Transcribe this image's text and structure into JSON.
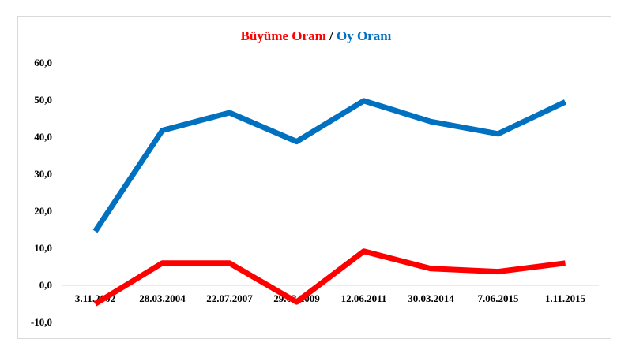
{
  "chart_data": {
    "type": "line",
    "title_part1": "Büyüme Oranı",
    "title_sep": " / ",
    "title_part2": "Oy Oranı",
    "categories": [
      "3.11.2002",
      "28.03.2004",
      "22.07.2007",
      "29.03.2009",
      "12.06.2011",
      "30.03.2014",
      "7.06.2015",
      "1.11.2015"
    ],
    "series": [
      {
        "name": "Büyüme Oranı",
        "color": "#ff0000",
        "values": [
          -5.0,
          6.0,
          6.0,
          -4.5,
          9.2,
          4.5,
          3.7,
          6.0
        ]
      },
      {
        "name": "Oy Oranı",
        "color": "#0070c0",
        "values": [
          14.6,
          41.8,
          46.6,
          38.8,
          49.8,
          44.2,
          40.9,
          49.5
        ]
      }
    ],
    "yticks": [
      "60,0",
      "50,0",
      "40,0",
      "30,0",
      "20,0",
      "10,0",
      "0,0",
      "-10,0"
    ],
    "ylim": [
      -10,
      60
    ],
    "grid": false
  }
}
